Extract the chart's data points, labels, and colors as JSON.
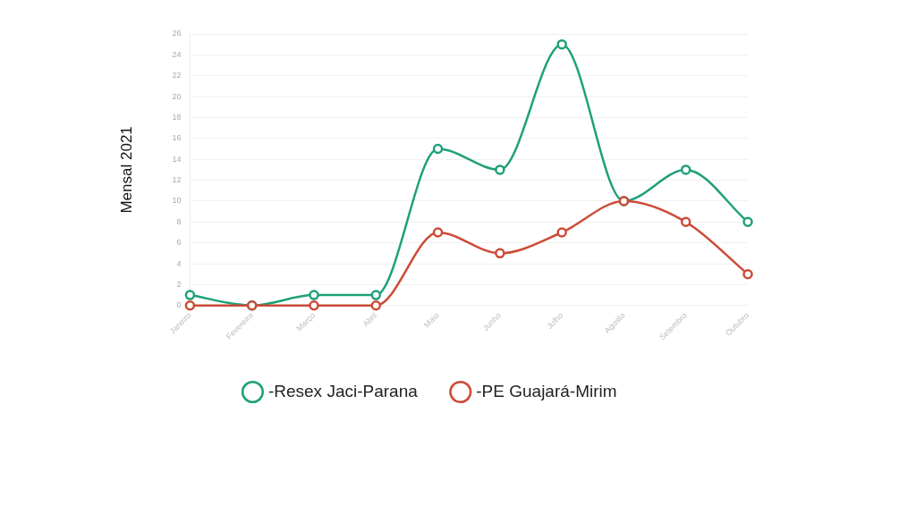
{
  "chart_data": {
    "type": "line",
    "ylabel": "Mensal 2021",
    "categories": [
      "Janeiro",
      "Fevereiro",
      "Março",
      "Abril",
      "Maio",
      "Junho",
      "Julho",
      "Agosto",
      "Setembro",
      "Outubro"
    ],
    "series": [
      {
        "name": "-Resex Jaci-Parana",
        "color": "#1fa07a",
        "values": [
          1,
          0,
          1,
          1,
          15,
          13,
          25,
          10,
          13,
          8
        ]
      },
      {
        "name": "-PE Guajará-Mirim",
        "color": "#cc4b37",
        "values": [
          0,
          0,
          0,
          0,
          7,
          5,
          7,
          10,
          8,
          3
        ]
      }
    ],
    "ylim": [
      0,
      26
    ],
    "yticks": [
      0,
      2,
      4,
      6,
      8,
      10,
      12,
      14,
      16,
      18,
      20,
      22,
      24,
      26
    ],
    "grid": "y",
    "legend": "bottom",
    "marker": "circle",
    "line_style": "solid"
  }
}
